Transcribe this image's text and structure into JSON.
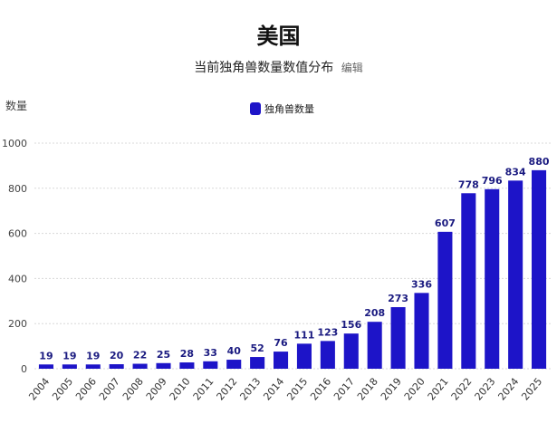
{
  "title": "美国",
  "subtitle": "当前独角兽数量数值分布",
  "edit_link": "编辑",
  "colors": {
    "bar": "#1d14c8",
    "bar_label": "#1a1a80",
    "grid": "#d8d8d8"
  },
  "chart_data": {
    "type": "bar",
    "title": "美国",
    "subtitle": "当前独角兽数量数值分布",
    "xlabel": "",
    "ylabel": "数量",
    "ylim": [
      0,
      1000
    ],
    "yticks": [
      0,
      200,
      400,
      600,
      800,
      1000
    ],
    "grid": true,
    "legend_position": "top-center",
    "categories": [
      "2004",
      "2005",
      "2006",
      "2007",
      "2008",
      "2009",
      "2010",
      "2011",
      "2012",
      "2013",
      "2014",
      "2015",
      "2016",
      "2017",
      "2018",
      "2019",
      "2020",
      "2021",
      "2022",
      "2023",
      "2024",
      "2025"
    ],
    "series": [
      {
        "name": "独角兽数量",
        "values": [
          19,
          19,
          19,
          20,
          22,
          25,
          28,
          33,
          40,
          52,
          76,
          111,
          123,
          156,
          208,
          273,
          336,
          607,
          778,
          796,
          834,
          880
        ]
      }
    ]
  }
}
